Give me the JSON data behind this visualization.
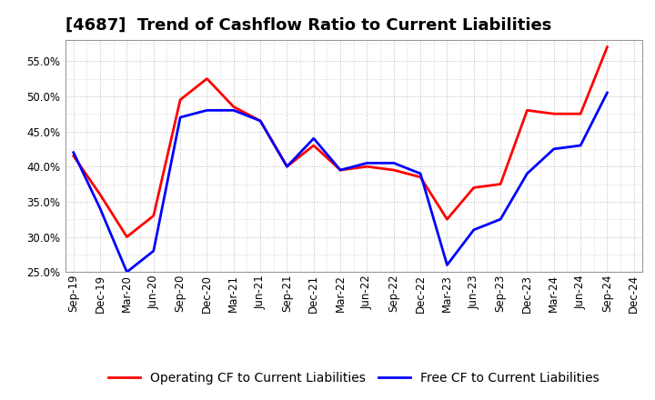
{
  "title": "[4687]  Trend of Cashflow Ratio to Current Liabilities",
  "x_labels": [
    "Sep-19",
    "Dec-19",
    "Mar-20",
    "Jun-20",
    "Sep-20",
    "Dec-20",
    "Mar-21",
    "Jun-21",
    "Sep-21",
    "Dec-21",
    "Mar-22",
    "Jun-22",
    "Sep-22",
    "Dec-22",
    "Mar-23",
    "Jun-23",
    "Sep-23",
    "Dec-23",
    "Mar-24",
    "Jun-24",
    "Sep-24",
    "Dec-24"
  ],
  "operating_cf": [
    41.5,
    36.0,
    30.0,
    33.0,
    49.5,
    52.5,
    48.5,
    46.5,
    40.0,
    43.0,
    39.5,
    40.0,
    39.5,
    38.5,
    32.5,
    37.0,
    37.5,
    48.0,
    47.5,
    47.5,
    57.0,
    null
  ],
  "free_cf": [
    42.0,
    34.0,
    25.0,
    28.0,
    47.0,
    48.0,
    48.0,
    46.5,
    40.0,
    44.0,
    39.5,
    40.5,
    40.5,
    39.0,
    26.0,
    31.0,
    32.5,
    39.0,
    42.5,
    43.0,
    50.5,
    null
  ],
  "ylim": [
    25.0,
    58.0
  ],
  "yticks": [
    25.0,
    30.0,
    35.0,
    40.0,
    45.0,
    50.0,
    55.0
  ],
  "operating_color": "#FF0000",
  "free_color": "#0000FF",
  "background_color": "#FFFFFF",
  "plot_bg_color": "#FFFFFF",
  "grid_color": "#BBBBBB",
  "legend_operating": "Operating CF to Current Liabilities",
  "legend_free": "Free CF to Current Liabilities",
  "title_fontsize": 13,
  "tick_fontsize": 8.5,
  "legend_fontsize": 10,
  "linewidth": 2.0
}
